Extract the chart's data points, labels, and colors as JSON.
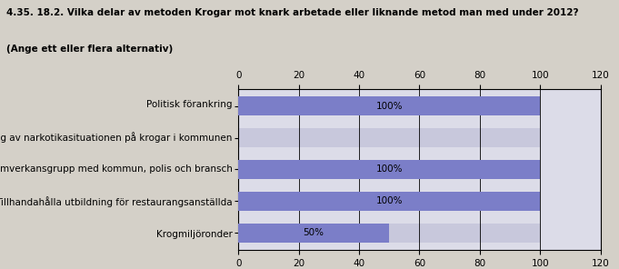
{
  "title_line1": "4.35. 18.2. Vilka delar av metoden Krogar mot knark arbetade eller liknande metod man med under 2012?",
  "title_line2": "(Ange ett eller flera alternativ)",
  "categories": [
    "Politisk förankring",
    "Kartläggning av narkotikasituationen på krogar i kommunen",
    "Samverkansgrupp med kommun, polis och bransch",
    "Tillhandahålla utbildning för restaurangsanställda",
    "Krogmiljöronder"
  ],
  "values": [
    100,
    0,
    100,
    100,
    50
  ],
  "bar_color": "#7b7ec8",
  "bar_bg_color": "#c8c8dc",
  "background_color": "#d4d0c8",
  "plot_bg_color": "#dcdce8",
  "xlim": [
    0,
    120
  ],
  "xticks": [
    0,
    20,
    40,
    60,
    80,
    100,
    120
  ],
  "bar_height": 0.62,
  "labels": [
    "100%",
    "",
    "100%",
    "100%",
    "50%"
  ],
  "label_fontsize": 7.5,
  "tick_fontsize": 7.5,
  "category_fontsize": 7.5,
  "title_fontsize": 7.5
}
